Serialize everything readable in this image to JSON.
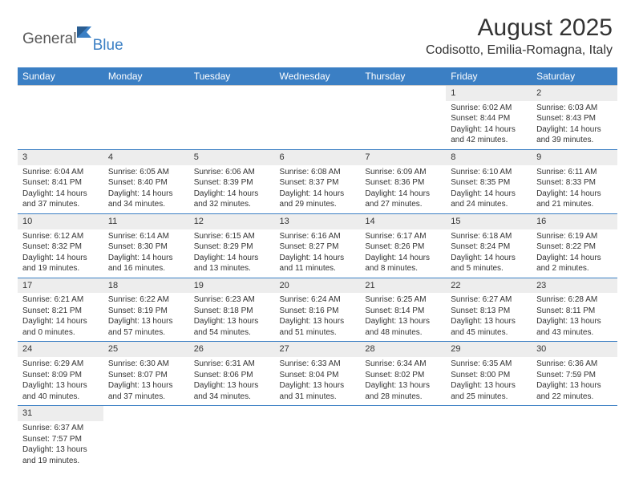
{
  "logo": {
    "part1": "General",
    "part2": "Blue"
  },
  "title": "August 2025",
  "location": "Codisotto, Emilia-Romagna, Italy",
  "colors": {
    "header_bg": "#3b7fc4",
    "header_text": "#ffffff",
    "daynum_bg": "#ededed",
    "rule": "#3b7fc4",
    "text": "#333333",
    "page_bg": "#ffffff"
  },
  "day_headers": [
    "Sunday",
    "Monday",
    "Tuesday",
    "Wednesday",
    "Thursday",
    "Friday",
    "Saturday"
  ],
  "weeks": [
    [
      null,
      null,
      null,
      null,
      null,
      {
        "n": "1",
        "sr": "6:02 AM",
        "ss": "8:44 PM",
        "dl": "14 hours and 42 minutes."
      },
      {
        "n": "2",
        "sr": "6:03 AM",
        "ss": "8:43 PM",
        "dl": "14 hours and 39 minutes."
      }
    ],
    [
      {
        "n": "3",
        "sr": "6:04 AM",
        "ss": "8:41 PM",
        "dl": "14 hours and 37 minutes."
      },
      {
        "n": "4",
        "sr": "6:05 AM",
        "ss": "8:40 PM",
        "dl": "14 hours and 34 minutes."
      },
      {
        "n": "5",
        "sr": "6:06 AM",
        "ss": "8:39 PM",
        "dl": "14 hours and 32 minutes."
      },
      {
        "n": "6",
        "sr": "6:08 AM",
        "ss": "8:37 PM",
        "dl": "14 hours and 29 minutes."
      },
      {
        "n": "7",
        "sr": "6:09 AM",
        "ss": "8:36 PM",
        "dl": "14 hours and 27 minutes."
      },
      {
        "n": "8",
        "sr": "6:10 AM",
        "ss": "8:35 PM",
        "dl": "14 hours and 24 minutes."
      },
      {
        "n": "9",
        "sr": "6:11 AM",
        "ss": "8:33 PM",
        "dl": "14 hours and 21 minutes."
      }
    ],
    [
      {
        "n": "10",
        "sr": "6:12 AM",
        "ss": "8:32 PM",
        "dl": "14 hours and 19 minutes."
      },
      {
        "n": "11",
        "sr": "6:14 AM",
        "ss": "8:30 PM",
        "dl": "14 hours and 16 minutes."
      },
      {
        "n": "12",
        "sr": "6:15 AM",
        "ss": "8:29 PM",
        "dl": "14 hours and 13 minutes."
      },
      {
        "n": "13",
        "sr": "6:16 AM",
        "ss": "8:27 PM",
        "dl": "14 hours and 11 minutes."
      },
      {
        "n": "14",
        "sr": "6:17 AM",
        "ss": "8:26 PM",
        "dl": "14 hours and 8 minutes."
      },
      {
        "n": "15",
        "sr": "6:18 AM",
        "ss": "8:24 PM",
        "dl": "14 hours and 5 minutes."
      },
      {
        "n": "16",
        "sr": "6:19 AM",
        "ss": "8:22 PM",
        "dl": "14 hours and 2 minutes."
      }
    ],
    [
      {
        "n": "17",
        "sr": "6:21 AM",
        "ss": "8:21 PM",
        "dl": "14 hours and 0 minutes."
      },
      {
        "n": "18",
        "sr": "6:22 AM",
        "ss": "8:19 PM",
        "dl": "13 hours and 57 minutes."
      },
      {
        "n": "19",
        "sr": "6:23 AM",
        "ss": "8:18 PM",
        "dl": "13 hours and 54 minutes."
      },
      {
        "n": "20",
        "sr": "6:24 AM",
        "ss": "8:16 PM",
        "dl": "13 hours and 51 minutes."
      },
      {
        "n": "21",
        "sr": "6:25 AM",
        "ss": "8:14 PM",
        "dl": "13 hours and 48 minutes."
      },
      {
        "n": "22",
        "sr": "6:27 AM",
        "ss": "8:13 PM",
        "dl": "13 hours and 45 minutes."
      },
      {
        "n": "23",
        "sr": "6:28 AM",
        "ss": "8:11 PM",
        "dl": "13 hours and 43 minutes."
      }
    ],
    [
      {
        "n": "24",
        "sr": "6:29 AM",
        "ss": "8:09 PM",
        "dl": "13 hours and 40 minutes."
      },
      {
        "n": "25",
        "sr": "6:30 AM",
        "ss": "8:07 PM",
        "dl": "13 hours and 37 minutes."
      },
      {
        "n": "26",
        "sr": "6:31 AM",
        "ss": "8:06 PM",
        "dl": "13 hours and 34 minutes."
      },
      {
        "n": "27",
        "sr": "6:33 AM",
        "ss": "8:04 PM",
        "dl": "13 hours and 31 minutes."
      },
      {
        "n": "28",
        "sr": "6:34 AM",
        "ss": "8:02 PM",
        "dl": "13 hours and 28 minutes."
      },
      {
        "n": "29",
        "sr": "6:35 AM",
        "ss": "8:00 PM",
        "dl": "13 hours and 25 minutes."
      },
      {
        "n": "30",
        "sr": "6:36 AM",
        "ss": "7:59 PM",
        "dl": "13 hours and 22 minutes."
      }
    ],
    [
      {
        "n": "31",
        "sr": "6:37 AM",
        "ss": "7:57 PM",
        "dl": "13 hours and 19 minutes."
      },
      null,
      null,
      null,
      null,
      null,
      null
    ]
  ],
  "labels": {
    "sunrise": "Sunrise: ",
    "sunset": "Sunset: ",
    "daylight": "Daylight: "
  }
}
